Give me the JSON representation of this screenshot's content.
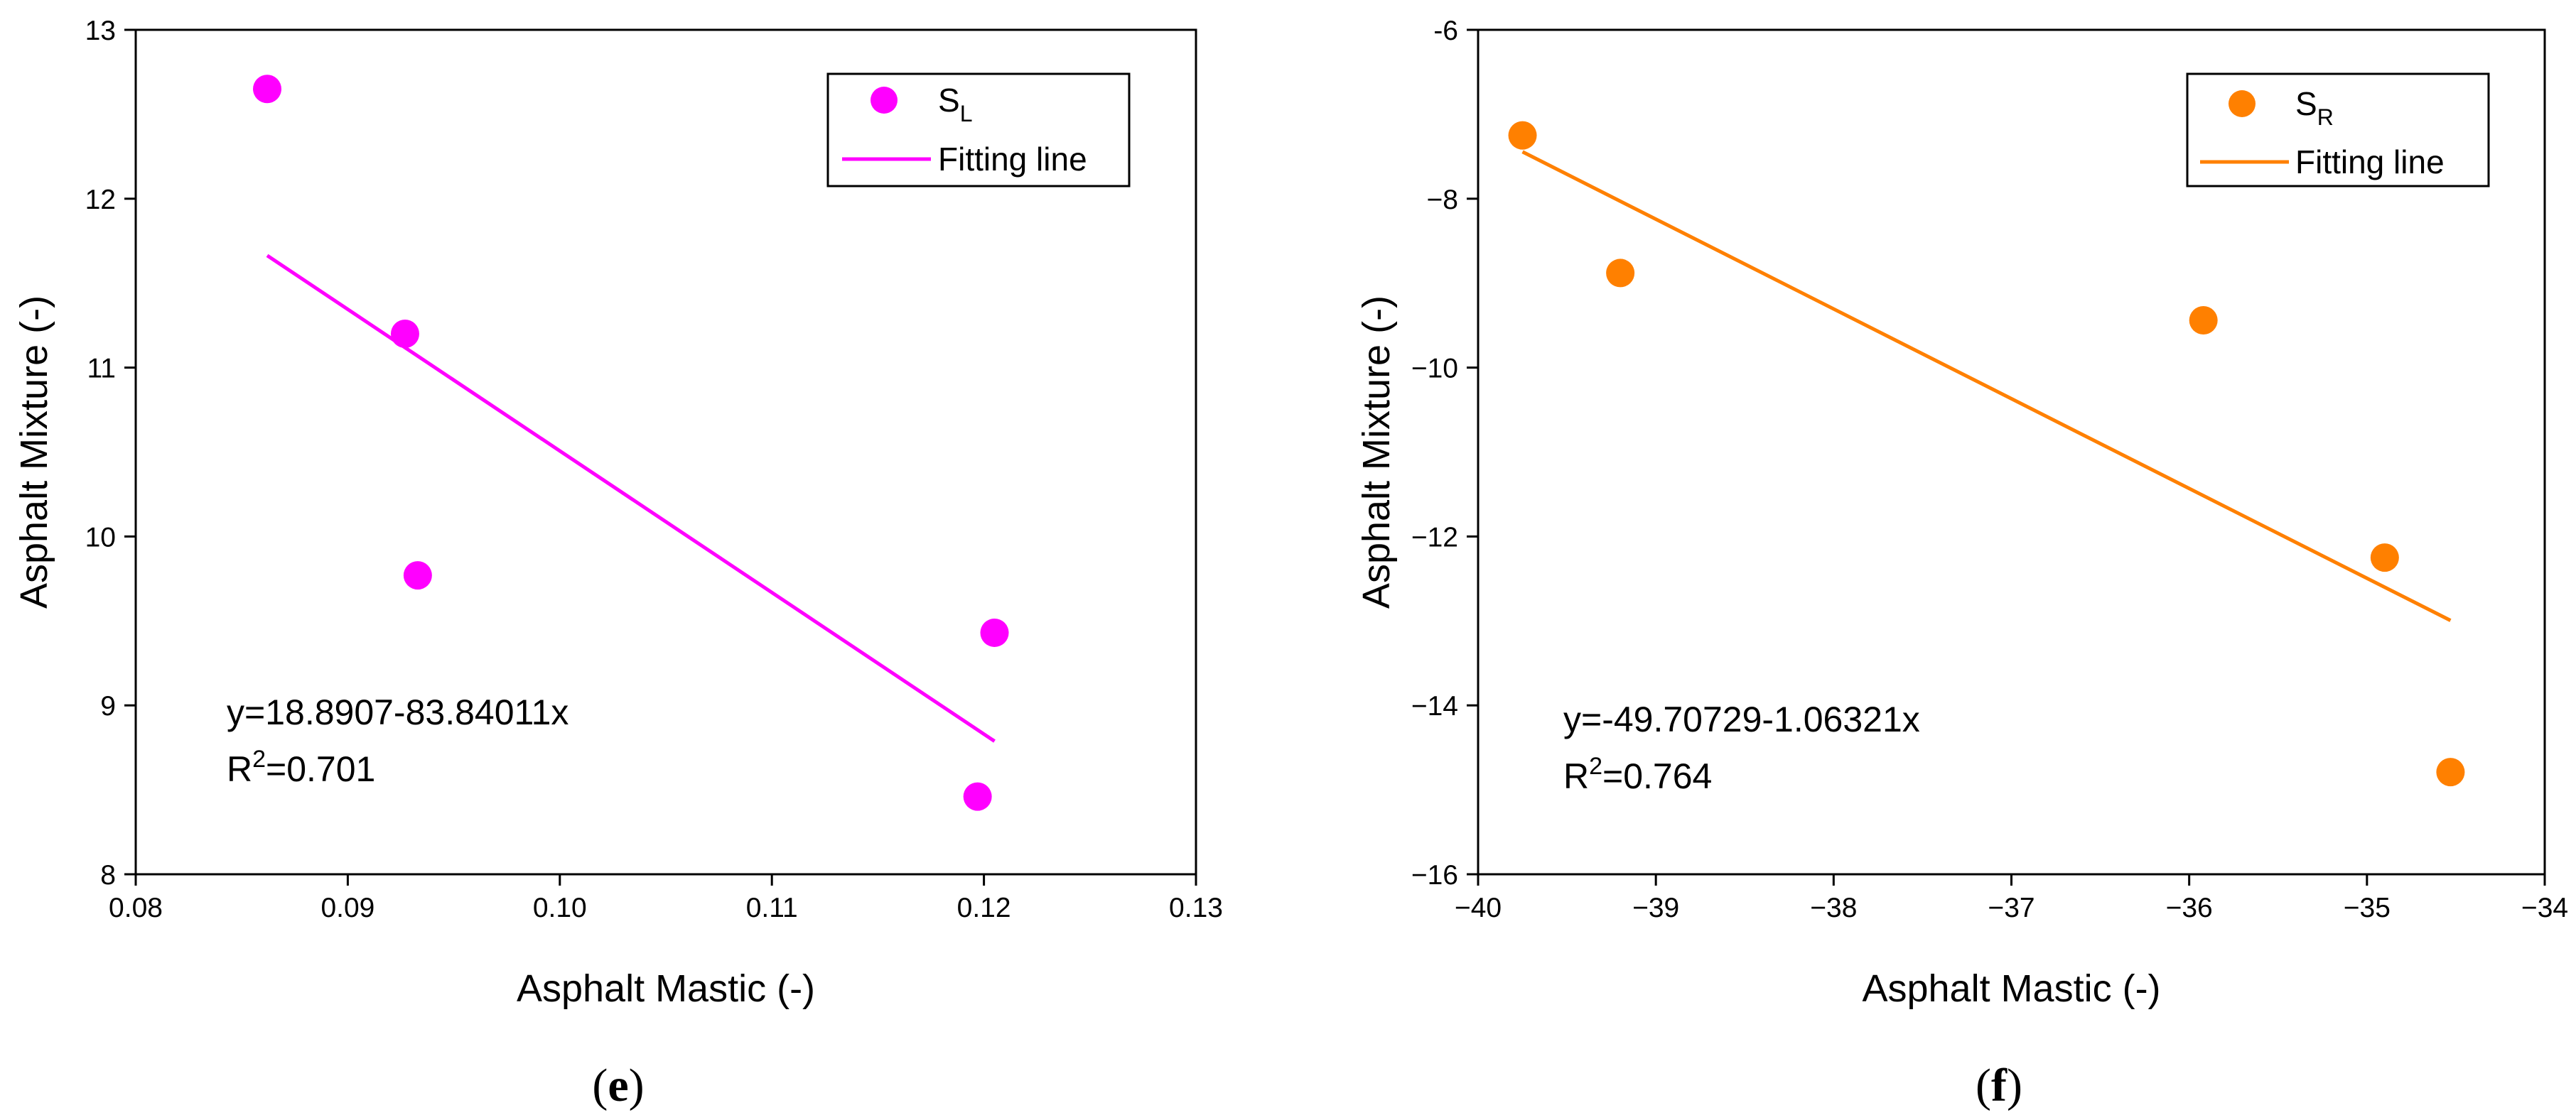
{
  "chart_data": [
    {
      "type": "scatter",
      "panel_label": "e",
      "xlabel": "Asphalt Mastic (-)",
      "ylabel": "Asphalt Mixture (-)",
      "xlim": [
        0.08,
        0.13
      ],
      "ylim": [
        8,
        13
      ],
      "xticks": [
        0.08,
        0.09,
        0.1,
        0.11,
        0.12,
        0.13
      ],
      "xtick_labels": [
        "0.08",
        "0.09",
        "0.10",
        "0.11",
        "0.12",
        "0.13"
      ],
      "yticks": [
        8,
        9,
        10,
        11,
        12,
        13
      ],
      "ytick_labels": [
        "8",
        "9",
        "10",
        "11",
        "12",
        "13"
      ],
      "color": "#ff00ff",
      "series": [
        {
          "name": "S_L",
          "legend_main": "S",
          "legend_sub": "L",
          "x": [
            0.0862,
            0.0927,
            0.0933,
            0.1197,
            0.1205
          ],
          "y": [
            12.65,
            11.2,
            9.77,
            8.46,
            9.43
          ]
        }
      ],
      "fit": {
        "legend_label": "Fitting line",
        "intercept": 18.8907,
        "slope": -83.84011,
        "x_range": [
          0.0862,
          0.1205
        ]
      },
      "annotation": {
        "equation": "y=18.8907-83.84011x",
        "r2_prefix": "R",
        "r2_sup": "2",
        "r2_value": "=0.701"
      },
      "legend_position": "top-right"
    },
    {
      "type": "scatter",
      "panel_label": "f",
      "xlabel": "Asphalt Mastic (-)",
      "ylabel": "Asphalt Mixture (-)",
      "xlim": [
        -40,
        -34
      ],
      "ylim": [
        -16,
        -6
      ],
      "xticks": [
        -40,
        -39,
        -38,
        -37,
        -36,
        -35,
        -34
      ],
      "xtick_labels": [
        "−40",
        "−39",
        "−38",
        "−37",
        "−36",
        "−35",
        "−34"
      ],
      "yticks": [
        -16,
        -14,
        -12,
        -10,
        -8,
        -6
      ],
      "ytick_labels": [
        "−16",
        "−14",
        "−12",
        "−10",
        "−8",
        "-6"
      ],
      "color": "#ff8000",
      "series": [
        {
          "name": "S_R",
          "legend_main": "S",
          "legend_sub": "R",
          "x": [
            -39.75,
            -39.2,
            -35.92,
            -34.9,
            -34.53
          ],
          "y": [
            -7.25,
            -8.88,
            -9.44,
            -12.25,
            -14.79
          ]
        }
      ],
      "fit": {
        "legend_label": "Fitting line",
        "intercept": -49.70729,
        "slope": -1.06321,
        "x_range": [
          -39.75,
          -34.53
        ]
      },
      "annotation": {
        "equation": "y=-49.70729-1.06321x",
        "r2_prefix": "R",
        "r2_sup": "2",
        "r2_value": "=0.764"
      },
      "legend_position": "top-right"
    }
  ]
}
